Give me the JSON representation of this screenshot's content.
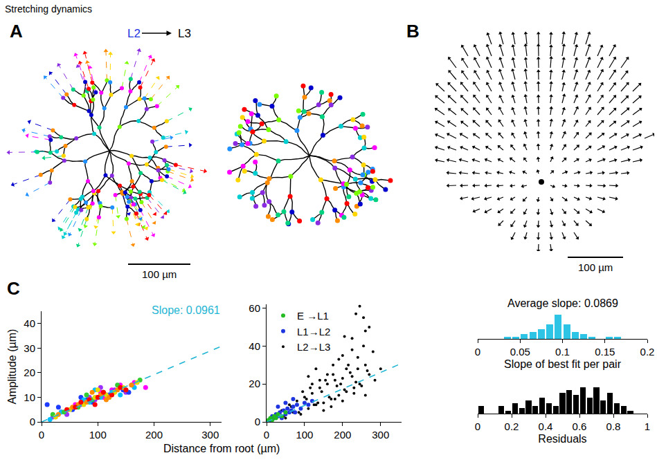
{
  "title": "Stretching dynamics",
  "panels": {
    "A": {
      "label": "A",
      "from": {
        "text": "L2",
        "color": "#1f35e0"
      },
      "to": {
        "text": "L3",
        "color": "#000000"
      },
      "scale_bar": "100 µm"
    },
    "B": {
      "label": "B",
      "scale_bar": "100 µm"
    }
  },
  "shared_xlabel": "Distance from root (µm)",
  "chart_data": [
    {
      "panel": "C",
      "type": "scatter",
      "ylabel": "Amplitude (µm)",
      "xlim": [
        0,
        320
      ],
      "xticks": [
        0,
        100,
        200,
        300
      ],
      "ylim": [
        0,
        45
      ],
      "yticks": [
        0,
        10,
        20,
        30,
        40
      ],
      "fit": {
        "slope": 0.0961,
        "label": "Slope: 0.0961",
        "color": "#1fb5d4"
      },
      "series": [
        {
          "color": "#ff0000",
          "x": [
            45,
            70,
            85,
            100,
            110,
            125,
            140,
            150,
            95,
            60
          ],
          "values": [
            5,
            8,
            9,
            10,
            12,
            11,
            14,
            13,
            7,
            6
          ]
        },
        {
          "color": "#ff8c00",
          "x": [
            30,
            55,
            80,
            105,
            120,
            135,
            160,
            90,
            115,
            65
          ],
          "values": [
            3,
            6,
            8,
            11,
            10,
            13,
            15,
            12,
            9,
            7
          ]
        },
        {
          "color": "#e6d800",
          "x": [
            25,
            50,
            75,
            95,
            115,
            130,
            145,
            170,
            100,
            85
          ],
          "values": [
            2,
            5,
            7,
            10,
            11,
            12,
            14,
            16,
            13,
            9
          ]
        },
        {
          "color": "#32cd32",
          "x": [
            20,
            40,
            65,
            90,
            110,
            120,
            150,
            175,
            135,
            80
          ],
          "values": [
            3,
            4,
            6,
            9,
            12,
            10,
            13,
            17,
            15,
            11
          ]
        },
        {
          "color": "#00bfff",
          "x": [
            15,
            35,
            60,
            85,
            105,
            125,
            140,
            165,
            95,
            75
          ],
          "values": [
            1,
            4,
            6,
            8,
            10,
            12,
            11,
            14,
            13,
            9
          ]
        },
        {
          "color": "#1e3cff",
          "x": [
            10,
            30,
            55,
            80,
            100,
            120,
            145,
            155,
            90,
            70
          ],
          "values": [
            7,
            6,
            5,
            9,
            10,
            11,
            13,
            12,
            8,
            10
          ]
        },
        {
          "color": "#9b30ff",
          "x": [
            20,
            45,
            70,
            95,
            115,
            130,
            150,
            160,
            105,
            85
          ],
          "values": [
            2,
            3,
            7,
            9,
            11,
            13,
            12,
            15,
            14,
            10
          ]
        },
        {
          "color": "#ff00ff",
          "x": [
            35,
            60,
            85,
            105,
            125,
            140,
            165,
            185,
            110,
            75
          ],
          "values": [
            4,
            7,
            9,
            12,
            13,
            15,
            16,
            14,
            10,
            8
          ]
        }
      ]
    },
    {
      "type": "scatter",
      "xlim": [
        0,
        355
      ],
      "xticks": [
        0,
        100,
        200,
        300
      ],
      "ylim": [
        0,
        62
      ],
      "yticks": [
        0,
        20,
        40,
        60
      ],
      "legend": "upper left",
      "fit": {
        "slope": 0.0869,
        "color": "#1fb5d4"
      },
      "series": [
        {
          "name": "E →L1",
          "color": "#22bb22",
          "x": [
            5,
            10,
            15,
            20,
            25,
            30,
            40,
            50
          ],
          "values": [
            1,
            2,
            1,
            3,
            2,
            4,
            3,
            5
          ]
        },
        {
          "name": "L1→L2",
          "color": "#1f35e0",
          "x": [
            10,
            15,
            20,
            25,
            30,
            35,
            40,
            45,
            50,
            55,
            60,
            65,
            70,
            75,
            80,
            90,
            100,
            110,
            120,
            30,
            50,
            70
          ],
          "values": [
            1,
            3,
            2,
            4,
            3,
            5,
            2,
            6,
            4,
            7,
            5,
            6,
            8,
            5,
            9,
            7,
            10,
            9,
            11,
            8,
            10,
            12
          ]
        },
        {
          "name": "L2→L3",
          "color": "#000000",
          "x": [
            40,
            50,
            60,
            70,
            80,
            90,
            100,
            110,
            120,
            130,
            140,
            150,
            160,
            170,
            180,
            190,
            200,
            210,
            220,
            230,
            240,
            250,
            260,
            270,
            45,
            65,
            85,
            105,
            125,
            145,
            165,
            185,
            205,
            225,
            245,
            265,
            285,
            115,
            135,
            155,
            175,
            195,
            215,
            235,
            95,
            120,
            140,
            160,
            175,
            190,
            200,
            210,
            225,
            240,
            255,
            170,
            150,
            180,
            200,
            230,
            130,
            110,
            205,
            260,
            245,
            235,
            255,
            280,
            300,
            260,
            225,
            270
          ],
          "values": [
            6,
            2,
            9,
            5,
            11,
            4,
            13,
            7,
            15,
            9,
            18,
            10,
            20,
            12,
            22,
            14,
            23,
            16,
            26,
            18,
            28,
            19,
            30,
            25,
            3,
            8,
            5,
            12,
            9,
            16,
            13,
            19,
            17,
            24,
            20,
            27,
            22,
            18,
            10,
            22,
            25,
            20,
            30,
            21,
            16,
            20,
            22,
            25,
            30,
            33,
            35,
            28,
            38,
            34,
            40,
            8,
            6,
            12,
            11,
            15,
            28,
            24,
            45,
            14,
            61,
            57,
            55,
            37,
            28,
            48,
            44,
            50
          ]
        }
      ]
    },
    {
      "type": "histogram",
      "title": "Average slope: 0.0869",
      "xlabel": "Slope of best fit per pair",
      "bins": [
        0.03,
        0.04,
        0.05,
        0.06,
        0.07,
        0.08,
        0.09,
        0.1,
        0.11,
        0.12,
        0.13,
        0.14,
        0.15,
        0.16,
        0.17
      ],
      "values": [
        1,
        1,
        2,
        3,
        4,
        6,
        10,
        6,
        3,
        2,
        1,
        0,
        1,
        1
      ],
      "color": "#2ec4e6",
      "xlim": [
        0,
        0.2
      ],
      "xticks": [
        0,
        0.05,
        0.1,
        0.15,
        0.2
      ],
      "ylim": [
        0,
        10
      ],
      "tick_labels": "x"
    },
    {
      "type": "histogram",
      "xlabel": "Residuals",
      "bins": [
        0,
        0.04,
        0.08,
        0.12,
        0.16,
        0.2,
        0.24,
        0.28,
        0.32,
        0.36,
        0.4,
        0.44,
        0.48,
        0.52,
        0.56,
        0.6,
        0.64,
        0.68,
        0.72,
        0.76,
        0.8,
        0.84,
        0.88,
        0.92
      ],
      "values": [
        3,
        0,
        0,
        3,
        1,
        4,
        2,
        5,
        3,
        6,
        4,
        3,
        8,
        9,
        7,
        10,
        6,
        10,
        5,
        8,
        4,
        3,
        1
      ],
      "color": "#000000",
      "xlim": [
        0,
        1
      ],
      "xticks": [
        0,
        0.2,
        0.4,
        0.6,
        0.8,
        1
      ],
      "ylim": [
        0,
        10
      ],
      "tick_labels": "x"
    }
  ]
}
